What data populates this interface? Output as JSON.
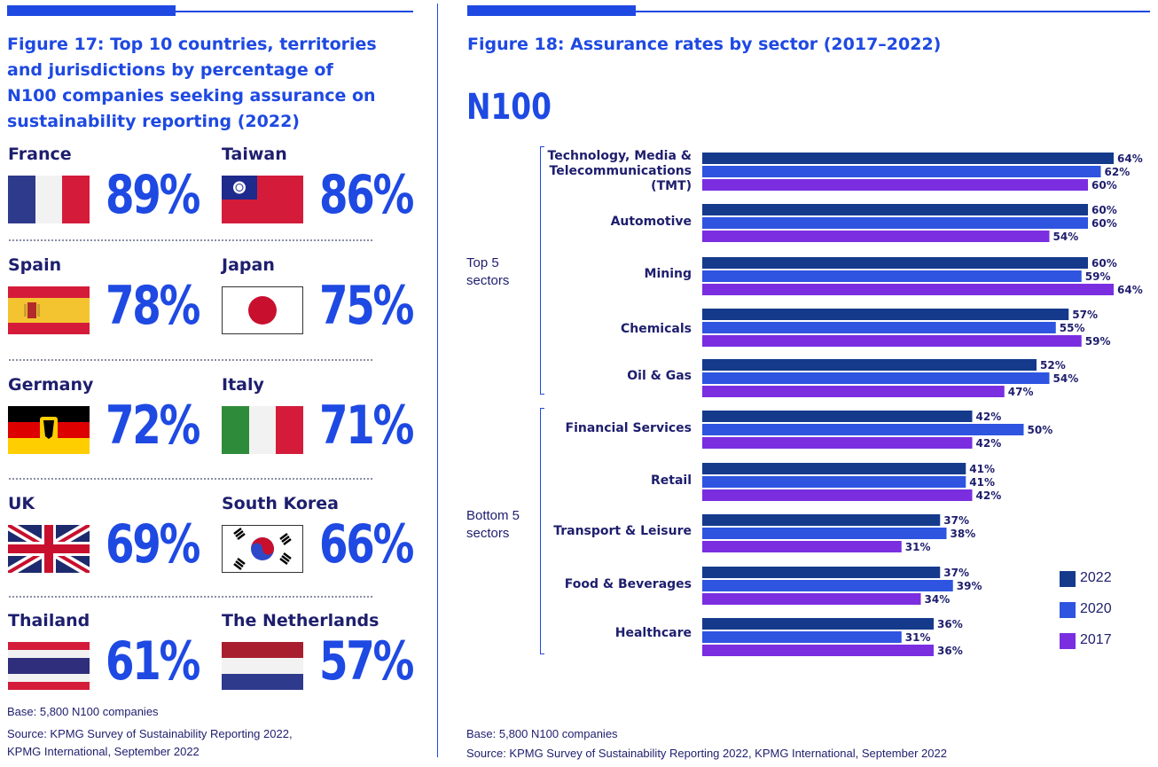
{
  "left": {
    "title_lines": [
      "Figure 17: Top 10 countries, territories",
      "and jurisdictions by percentage of",
      "N100 companies seeking assurance on",
      "sustainability reporting (2022)"
    ],
    "countries": [
      {
        "name": "France",
        "pct": "89%",
        "flag": "france-flag"
      },
      {
        "name": "Taiwan",
        "pct": "86%",
        "flag": "taiwan-flag"
      },
      {
        "name": "Spain",
        "pct": "78%",
        "flag": "spain-flag"
      },
      {
        "name": "Japan",
        "pct": "75%",
        "flag": "japan-flag"
      },
      {
        "name": "Germany",
        "pct": "72%",
        "flag": "germany-flag"
      },
      {
        "name": "Italy",
        "pct": "71%",
        "flag": "italy-flag"
      },
      {
        "name": "UK",
        "pct": "69%",
        "flag": "uk-flag"
      },
      {
        "name": "South Korea",
        "pct": "66%",
        "flag": "south-korea-flag"
      },
      {
        "name": "Thailand",
        "pct": "61%",
        "flag": "thailand-flag"
      },
      {
        "name": "The Netherlands",
        "pct": "57%",
        "flag": "netherlands-flag"
      }
    ],
    "base": "Base: 5,800 N100 companies",
    "source_lines": [
      "Source: KPMG Survey of Sustainability Reporting 2022,",
      "KPMG International, September 2022"
    ]
  },
  "right": {
    "title": "Figure 18: Assurance rates by sector (2017–2022)",
    "n100": "N100",
    "top_group": "Top 5\nsectors",
    "bottom_group": "Bottom 5\nsectors",
    "base": "Base: 5,800 N100 companies",
    "source": "Source: KPMG Survey of Sustainability Reporting 2022, KPMG International, September 2022"
  },
  "colors": {
    "y2022": "#153a8c",
    "y2020": "#2e54e0",
    "y2017": "#7a2ee0",
    "accent": "#1e49e2"
  },
  "chart_data": {
    "type": "bar",
    "orientation": "horizontal",
    "title": "Figure 18: Assurance rates by sector (2017–2022)",
    "categories": [
      [
        "Technology, Media &",
        "Telecommunications",
        "(TMT)"
      ],
      [
        "Automotive"
      ],
      [
        "Mining"
      ],
      [
        "Chemicals"
      ],
      [
        "Oil & Gas"
      ],
      [
        "Financial Services"
      ],
      [
        "Retail"
      ],
      [
        "Transport & Leisure"
      ],
      [
        "Food & Beverages"
      ],
      [
        "Healthcare"
      ]
    ],
    "series": [
      {
        "name": "2022",
        "values": [
          64,
          60,
          60,
          57,
          52,
          42,
          41,
          37,
          37,
          36
        ]
      },
      {
        "name": "2020",
        "values": [
          62,
          60,
          59,
          55,
          54,
          50,
          41,
          38,
          39,
          31
        ]
      },
      {
        "name": "2017",
        "values": [
          60,
          54,
          64,
          59,
          47,
          42,
          42,
          31,
          34,
          36
        ]
      }
    ],
    "value_suffix": "%",
    "legend_position": "bottom-right",
    "grid": false
  }
}
